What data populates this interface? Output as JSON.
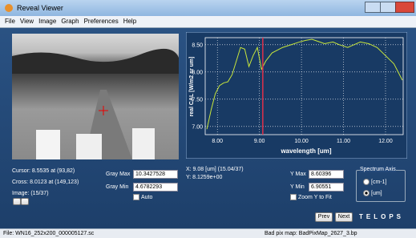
{
  "window": {
    "title": "Reveal Viewer"
  },
  "menu": [
    "File",
    "View",
    "Image",
    "Graph",
    "Preferences",
    "Help"
  ],
  "chart_data": {
    "type": "line",
    "xlabel": "wavelength [um]",
    "ylabel": "real CAL [W/m2 sr um]",
    "x": [
      7.75,
      7.85,
      7.95,
      8.05,
      8.15,
      8.25,
      8.35,
      8.45,
      8.55,
      8.65,
      8.75,
      8.85,
      8.95,
      9.05,
      9.15,
      9.3,
      9.55,
      9.75,
      9.95,
      10.1,
      10.25,
      10.4,
      10.55,
      10.75,
      10.9,
      11.1,
      11.25,
      11.4,
      11.6,
      11.8,
      12.0,
      12.2,
      12.4
    ],
    "series": [
      {
        "color": "#c8e63c",
        "values": [
          6.95,
          7.3,
          7.6,
          7.75,
          7.8,
          7.82,
          7.95,
          8.2,
          8.45,
          8.42,
          8.1,
          8.3,
          8.45,
          8.05,
          8.2,
          8.35,
          8.45,
          8.5,
          8.55,
          8.58,
          8.6,
          8.56,
          8.52,
          8.55,
          8.5,
          8.45,
          8.5,
          8.55,
          8.52,
          8.45,
          8.3,
          8.15,
          7.85
        ]
      }
    ],
    "marker_x": 9.08,
    "marker_color": "#e0304a",
    "xlim": [
      7.71,
      12.42
    ],
    "ylim": [
      6.85,
      8.63
    ],
    "xticks": [
      {
        "value": 8,
        "label": "8.00"
      },
      {
        "value": 9,
        "label": "9.00"
      },
      {
        "value": 10,
        "label": "10.00"
      },
      {
        "value": 11,
        "label": "11.00"
      },
      {
        "value": 12,
        "label": "12.00"
      }
    ],
    "yticks": [
      {
        "value": 7,
        "label": "7.00"
      },
      {
        "value": 7.5,
        "label": "7.50"
      },
      {
        "value": 8,
        "label": "8.00"
      },
      {
        "value": 8.5,
        "label": "8.50"
      }
    ],
    "grid": true
  },
  "info": {
    "cursor": "Cursor: 8.5535 at (93,82)",
    "cross": "Cross: 8.0123 at (149,123)",
    "image": "Image: (15/37)"
  },
  "gray": {
    "max_label": "Gray Max",
    "max": "10.3427528",
    "min_label": "Gray Min",
    "min": "4.6782293",
    "auto": "Auto"
  },
  "readout": {
    "x": "X: 9.08 [um] (15.04/37)",
    "y": "Y: 8.1259e+00"
  },
  "yrange": {
    "max_label": "Y Max",
    "max": "8.60396",
    "min_label": "Y Min",
    "min": "6.90551",
    "zoom": "Zoom Y to Fit"
  },
  "spectrum_axis": {
    "title": "Spectrum Axis",
    "options": [
      "[cm-1]",
      "[um]"
    ]
  },
  "buttons": {
    "prev": "Prev",
    "next": "Next"
  },
  "logo": "TELOPS",
  "status": {
    "file": "File: WN16_252x200_000005127.sc",
    "badpix": "Bad pix map: BadPixMap_2627_3.bp"
  }
}
